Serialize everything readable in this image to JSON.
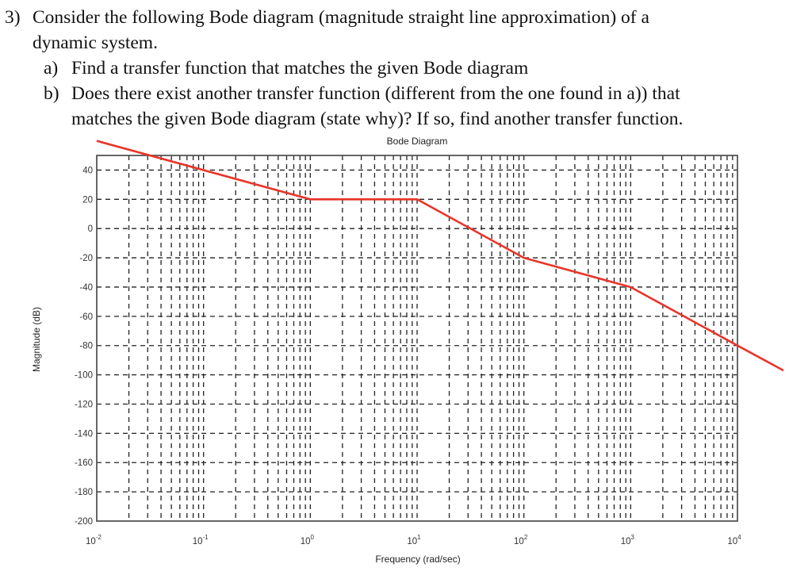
{
  "question": {
    "number": "3)",
    "line1": "Consider the following Bode diagram (magnitude straight line approximation) of a",
    "line2": "dynamic system.",
    "parts": [
      {
        "label": "a)",
        "text": "Find a transfer function that matches the given Bode diagram"
      },
      {
        "label": "b)",
        "text": "Does there exist another transfer function (different from the one found in a)) that",
        "text2": "matches the given Bode diagram (state why)? If so, find another transfer function."
      }
    ]
  },
  "chart_data": {
    "type": "line",
    "title": "Bode Diagram",
    "xlabel": "Frequency (rad/sec)",
    "ylabel": "Magnitude (dB)",
    "xscale": "log",
    "xlim": [
      0.01,
      10000
    ],
    "ylim": [
      -200,
      50
    ],
    "grid": true,
    "x_ticks": [
      {
        "base": "10",
        "exp": "-2",
        "value": 0.01
      },
      {
        "base": "10",
        "exp": "-1",
        "value": 0.1
      },
      {
        "base": "10",
        "exp": "0",
        "value": 1
      },
      {
        "base": "10",
        "exp": "1",
        "value": 10
      },
      {
        "base": "10",
        "exp": "2",
        "value": 100
      },
      {
        "base": "10",
        "exp": "3",
        "value": 1000
      },
      {
        "base": "10",
        "exp": "4",
        "value": 10000
      }
    ],
    "y_ticks": [
      "40",
      "20",
      "0",
      "-20",
      "-40",
      "-60",
      "-80",
      "-100",
      "-120",
      "-140",
      "-160",
      "-180",
      "-200"
    ],
    "series": [
      {
        "color": "#e8352a",
        "x": [
          0.01,
          1,
          10,
          100,
          1000,
          10000,
          27000
        ],
        "y": [
          60,
          20,
          20,
          -20,
          -40,
          -80,
          -97
        ]
      }
    ]
  }
}
